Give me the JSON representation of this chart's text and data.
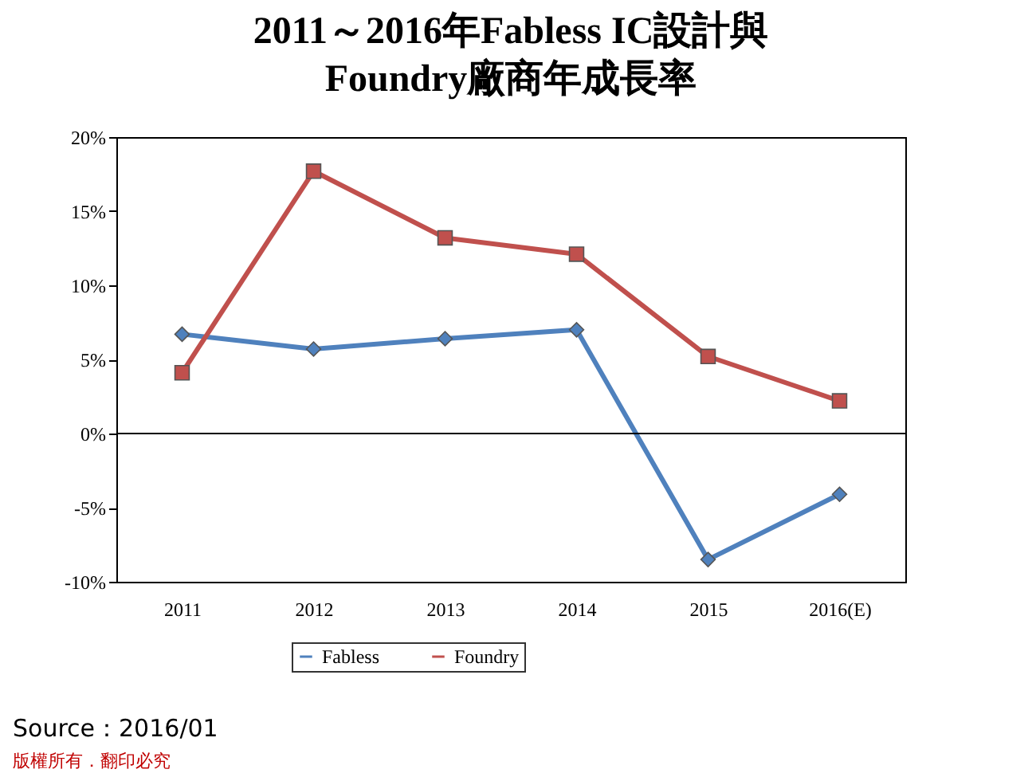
{
  "chart_data": {
    "type": "line",
    "title": "2011～2016年Fabless IC設計與\nFoundry廠商年成長率",
    "categories": [
      "2011",
      "2012",
      "2013",
      "2014",
      "2015",
      "2016(E)"
    ],
    "series": [
      {
        "name": "Fabless",
        "color": "#4f81bd",
        "marker": "diamond",
        "values": [
          6.7,
          5.7,
          6.4,
          7.0,
          -8.5,
          -4.1
        ]
      },
      {
        "name": "Foundry",
        "color": "#c0504d",
        "marker": "square",
        "values": [
          4.1,
          17.7,
          13.2,
          12.1,
          5.2,
          2.2
        ]
      }
    ],
    "ylim": [
      -10,
      20
    ],
    "yticks": [
      {
        "value": -10,
        "label": "-10%"
      },
      {
        "value": -5,
        "label": "-5%"
      },
      {
        "value": 0,
        "label": "0%"
      },
      {
        "value": 5,
        "label": "5%"
      },
      {
        "value": 10,
        "label": "10%"
      },
      {
        "value": 15,
        "label": "15%"
      },
      {
        "value": 20,
        "label": "20%"
      }
    ],
    "ref_lines": [
      {
        "axis": "y",
        "value": 0,
        "color": "#000000"
      }
    ],
    "grid": false,
    "legend": "bottom",
    "line_style": "solid",
    "annotations": [
      "Source：2016/01",
      "版權所有．翻印必究"
    ]
  }
}
